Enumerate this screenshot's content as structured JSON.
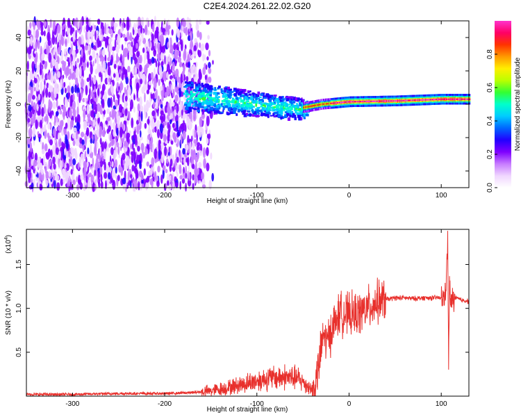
{
  "title": "C2E4.2024.261.22.02.G20",
  "colors": {
    "axis": "#000000",
    "snr_line": "#e8302c"
  },
  "colormap": [
    "#ffffff",
    "#f0d6ff",
    "#c77bff",
    "#7f00ff",
    "#2200ff",
    "#0066ff",
    "#00ccff",
    "#00ffcc",
    "#33ff33",
    "#bbff00",
    "#ffee00",
    "#ff9900",
    "#ff3300",
    "#ff0066",
    "#ff33cc"
  ],
  "chart_data": [
    {
      "id": "spectrogram",
      "type": "heatmap",
      "xlabel": "Height of straight line (km)",
      "ylabel": "Frequency (Hz)",
      "xlim": [
        -350,
        130
      ],
      "ylim": [
        -50,
        50
      ],
      "xticks": [
        -300,
        -200,
        -100,
        0,
        100
      ],
      "yticks": [
        -40,
        -20,
        0,
        20,
        40
      ],
      "colorbar": {
        "label": "Normalized spectral amplitude",
        "range": [
          0,
          1
        ],
        "ticks": [
          "0.0",
          "0.2",
          "0.4",
          "0.6",
          "0.8"
        ],
        "tick_values": [
          0.0,
          0.2,
          0.4,
          0.6,
          0.8
        ]
      },
      "regions": [
        {
          "x_range": [
            -350,
            -150
          ],
          "amplitude": "low (0.05-0.25)",
          "spread_hz": 50
        },
        {
          "x_range": [
            -180,
            -50
          ],
          "amplitude": "medium (0.2-0.5)",
          "center_hz": 2,
          "spread_hz": 12
        },
        {
          "x_range": [
            -50,
            130
          ],
          "amplitude": "high (0.5-0.95)",
          "center_hz": 2,
          "spread_hz": 2
        }
      ],
      "ridge": [
        {
          "x": -170,
          "y": 5
        },
        {
          "x": -120,
          "y": 2
        },
        {
          "x": -80,
          "y": -1
        },
        {
          "x": -50,
          "y": -2
        },
        {
          "x": -30,
          "y": 0
        },
        {
          "x": 0,
          "y": 1.5
        },
        {
          "x": 50,
          "y": 2
        },
        {
          "x": 100,
          "y": 3
        },
        {
          "x": 130,
          "y": 3
        }
      ]
    },
    {
      "id": "snr",
      "type": "line",
      "xlabel": "Height of straight line (km)",
      "ylabel": "SNR (10 * v/v)",
      "yscale_label_base": "(x10",
      "yscale_label_exp": "4",
      "yscale_label_close": ")",
      "xlim": [
        -350,
        130
      ],
      "ylim": [
        0,
        1.9
      ],
      "xticks": [
        -300,
        -200,
        -100,
        0,
        100
      ],
      "yticks": [
        0.5,
        1.0,
        1.5
      ],
      "ytick_labels": [
        "0.5",
        "1.0",
        "1.5"
      ],
      "series": [
        {
          "x": [
            -350,
            -300,
            -250,
            -200,
            -170,
            -150,
            -130,
            -110,
            -90,
            -70,
            -55,
            -45,
            -38,
            -32,
            -28,
            -24,
            -18,
            -10,
            0,
            10,
            20,
            30,
            40,
            50,
            60,
            70,
            80,
            90,
            98,
            102,
            104,
            106,
            107,
            108,
            109,
            110,
            112,
            116,
            120,
            130
          ],
          "y": [
            0.02,
            0.02,
            0.03,
            0.03,
            0.04,
            0.06,
            0.1,
            0.15,
            0.2,
            0.22,
            0.2,
            0.12,
            0.05,
            0.4,
            0.7,
            0.62,
            0.78,
            0.95,
            0.92,
            0.94,
            1.0,
            1.07,
            1.1,
            1.12,
            1.12,
            1.11,
            1.12,
            1.12,
            1.12,
            1.11,
            1.15,
            1.4,
            1.8,
            0.35,
            1.3,
            1.05,
            1.1,
            1.12,
            1.1,
            1.08
          ]
        }
      ]
    }
  ]
}
